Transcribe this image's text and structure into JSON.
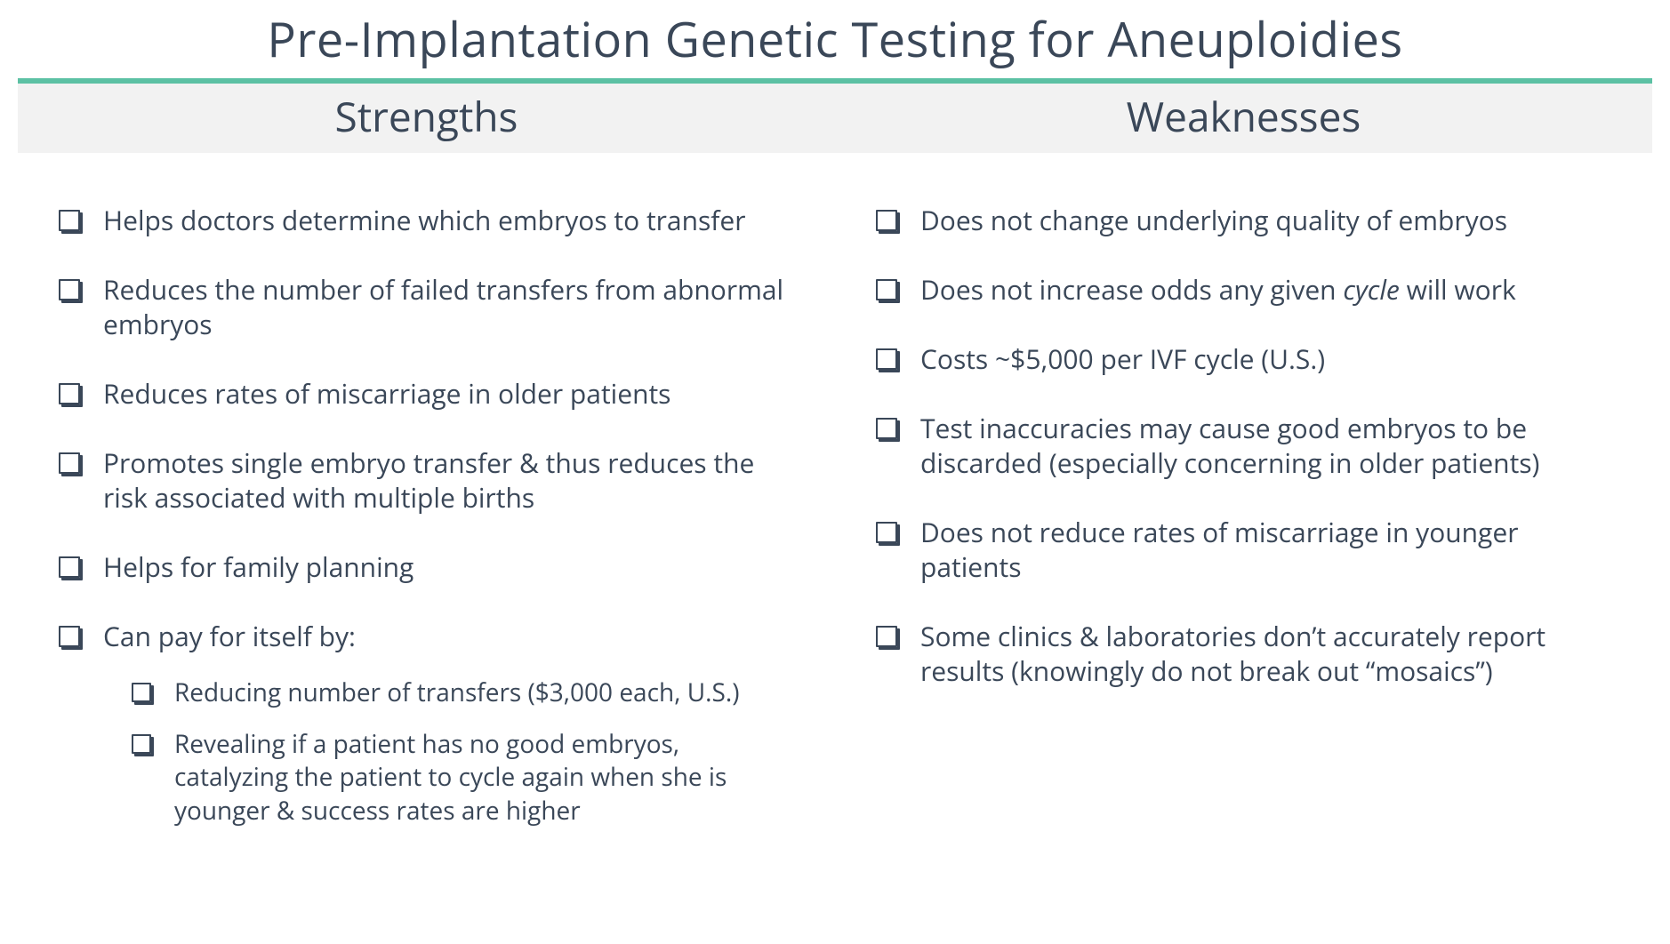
{
  "title": "Pre-Implantation Genetic Testing for Aneuploidies",
  "accent_color": "#5cc1a4",
  "header_bg": "#f2f2f2",
  "text_color": "#3a4758",
  "columns": {
    "left": {
      "header": "Strengths",
      "items": [
        {
          "text": "Helps doctors determine which embryos to transfer"
        },
        {
          "text": "Reduces the number of failed transfers from abnormal embryos"
        },
        {
          "text": "Reduces rates of miscarriage in older patients"
        },
        {
          "text": "Promotes single embryo transfer & thus reduces the risk associated with multiple births"
        },
        {
          "text": "Helps for family planning"
        },
        {
          "text": "Can pay for itself by:",
          "sub": [
            {
              "text": "Reducing number of transfers ($3,000 each, U.S.)"
            },
            {
              "text": "Revealing if a patient has no good embryos, catalyzing the patient to cycle again when she is younger & success rates are higher"
            }
          ]
        }
      ]
    },
    "right": {
      "header": "Weaknesses",
      "items": [
        {
          "text": "Does not change underlying quality of embryos"
        },
        {
          "text_pre": "Does not increase odds any given ",
          "text_ital": "cycle",
          "text_post": " will work"
        },
        {
          "text": "Costs ~$5,000 per IVF cycle (U.S.)"
        },
        {
          "text": "Test inaccuracies may cause good embryos to be discarded (especially concerning in older patients)"
        },
        {
          "text": "Does not reduce rates of miscarriage in younger patients"
        },
        {
          "text": "Some clinics & laboratories don’t accurately report results (knowingly do not break out “mosaics”)"
        }
      ]
    }
  }
}
